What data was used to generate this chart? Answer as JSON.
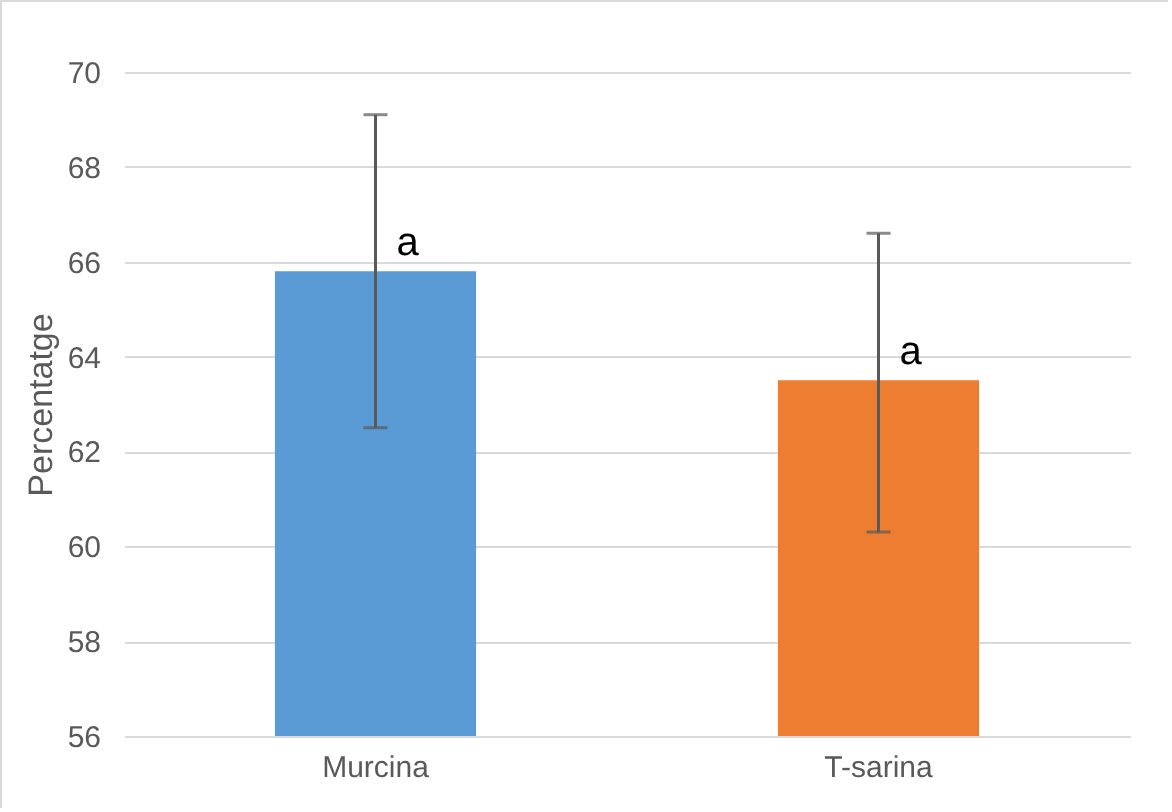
{
  "chart_data": {
    "type": "bar",
    "ylabel": "Percentatge",
    "categories": [
      "Murcina",
      "T-sarina"
    ],
    "values": [
      65.8,
      63.5
    ],
    "colors": [
      "#5b9bd5",
      "#ed7d31"
    ],
    "errors": [
      [
        62.5,
        69.1
      ],
      [
        60.3,
        66.6
      ]
    ],
    "ylim": [
      56,
      70
    ],
    "yticks": [
      56,
      58,
      60,
      62,
      64,
      66,
      68,
      70
    ],
    "grid": "y",
    "annotations": [
      {
        "text": "a",
        "x": "Murcina",
        "y": 66.4
      },
      {
        "text": "a",
        "x": "T-sarina",
        "y": 64.1
      }
    ]
  }
}
